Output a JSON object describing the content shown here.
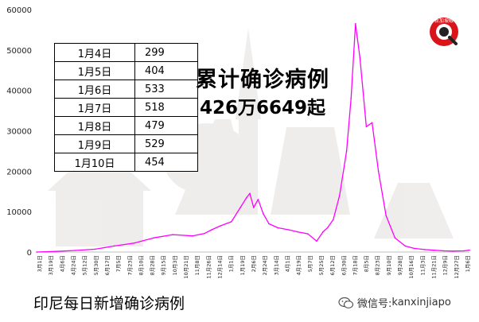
{
  "caption": "印尼每日新增确诊病例",
  "headline": {
    "line1": "累计确诊病例",
    "line2": "426万6649起"
  },
  "watermark": {
    "prefix": "微信号:",
    "account": "kanxinjiapo",
    "icon": "wechat-icon"
  },
  "logo": {
    "text": "新加坡眼",
    "icon": "magnifier-logo"
  },
  "daily_table": [
    {
      "date": "1月4日",
      "value": "299"
    },
    {
      "date": "1月5日",
      "value": "404"
    },
    {
      "date": "1月6日",
      "value": "533"
    },
    {
      "date": "1月7日",
      "value": "518"
    },
    {
      "date": "1月8日",
      "value": "479"
    },
    {
      "date": "1月9日",
      "value": "529"
    },
    {
      "date": "1月10日",
      "value": "454"
    }
  ],
  "colors": {
    "line": "#ff00ff",
    "axis_text": "#222222",
    "grid": "#d9d9d9"
  },
  "chart_data": {
    "type": "line",
    "title": "",
    "xlabel": "",
    "ylabel": "",
    "ylim": [
      0,
      60000
    ],
    "yticks": [
      "0",
      "10000",
      "20000",
      "30000",
      "40000",
      "50000",
      "60000"
    ],
    "grid": false,
    "legend": "none",
    "x_date_range": [
      "2020-03-01",
      "2022-01-10"
    ],
    "series": [
      {
        "points": [
          [
            "2020-03-01",
            0
          ],
          [
            "2020-04-01",
            150
          ],
          [
            "2020-05-01",
            400
          ],
          [
            "2020-06-01",
            700
          ],
          [
            "2020-07-01",
            1500
          ],
          [
            "2020-08-01",
            2200
          ],
          [
            "2020-09-01",
            3500
          ],
          [
            "2020-10-01",
            4300
          ],
          [
            "2020-11-01",
            4000
          ],
          [
            "2020-11-20",
            4600
          ],
          [
            "2020-12-01",
            5500
          ],
          [
            "2020-12-15",
            6500
          ],
          [
            "2021-01-01",
            7500
          ],
          [
            "2021-01-15",
            11000
          ],
          [
            "2021-01-25",
            13500
          ],
          [
            "2021-01-30",
            14500
          ],
          [
            "2021-02-05",
            11000
          ],
          [
            "2021-02-12",
            13000
          ],
          [
            "2021-02-20",
            9500
          ],
          [
            "2021-03-01",
            7000
          ],
          [
            "2021-03-15",
            6000
          ],
          [
            "2021-04-01",
            5500
          ],
          [
            "2021-04-15",
            5000
          ],
          [
            "2021-05-01",
            4500
          ],
          [
            "2021-05-15",
            2700
          ],
          [
            "2021-05-25",
            5000
          ],
          [
            "2021-06-01",
            6000
          ],
          [
            "2021-06-10",
            8000
          ],
          [
            "2021-06-20",
            14000
          ],
          [
            "2021-07-01",
            25000
          ],
          [
            "2021-07-08",
            38000
          ],
          [
            "2021-07-15",
            56500
          ],
          [
            "2021-07-22",
            48000
          ],
          [
            "2021-08-01",
            31000
          ],
          [
            "2021-08-10",
            32000
          ],
          [
            "2021-08-20",
            20000
          ],
          [
            "2021-09-01",
            9000
          ],
          [
            "2021-09-15",
            3500
          ],
          [
            "2021-10-01",
            1500
          ],
          [
            "2021-10-15",
            900
          ],
          [
            "2021-11-01",
            600
          ],
          [
            "2021-11-15",
            450
          ],
          [
            "2021-12-01",
            300
          ],
          [
            "2021-12-15",
            230
          ],
          [
            "2022-01-01",
            300
          ],
          [
            "2022-01-10",
            450
          ]
        ]
      }
    ],
    "x_tick_labels": [
      "3月1日",
      "3月19日",
      "4月6日",
      "4月24日",
      "5月12日",
      "5月30日",
      "6月17日",
      "7月5日",
      "7月23日",
      "8月10日",
      "8月28日",
      "9月15日",
      "10月3日",
      "10月21日",
      "11月8日",
      "11月26日",
      "12月14日",
      "1月1日",
      "1月19日",
      "2月6日",
      "2月24日",
      "3月14日",
      "4月1日",
      "4月19日",
      "5月7日",
      "5月25日",
      "6月12日",
      "6月30日",
      "7月18日",
      "8月5日",
      "8月23日",
      "9月10日",
      "9月28日",
      "10月16日",
      "11月3日",
      "11月21日",
      "12月9日",
      "12月27日",
      "1月6日"
    ]
  }
}
